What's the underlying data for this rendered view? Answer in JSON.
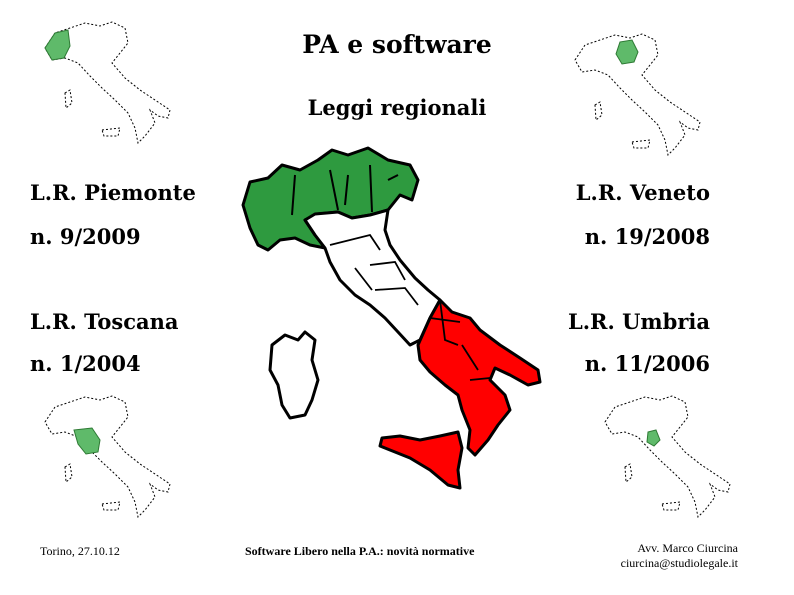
{
  "slide": {
    "title": "PA e software",
    "subtitle": "Leggi regionali"
  },
  "laws": [
    {
      "label": "L.R. Piemonte",
      "number": "n. 9/2009"
    },
    {
      "label": "L.R. Veneto",
      "number": "n. 19/2008"
    },
    {
      "label": "L.R. Toscana",
      "number": "n. 1/2004"
    },
    {
      "label": "L.R. Umbria",
      "number": "n. 11/2006"
    }
  ],
  "footer": {
    "date": "Torino, 27.10.12",
    "center": "Software Libero nella P.A.: novità normative",
    "author": "Avv. Marco Ciurcina",
    "email": "ciurcina@studiolegale.it"
  },
  "colors": {
    "green": "#2e9a3f",
    "white": "#ffffff",
    "red": "#ff0000",
    "mini_highlight": "#5fba6a"
  }
}
